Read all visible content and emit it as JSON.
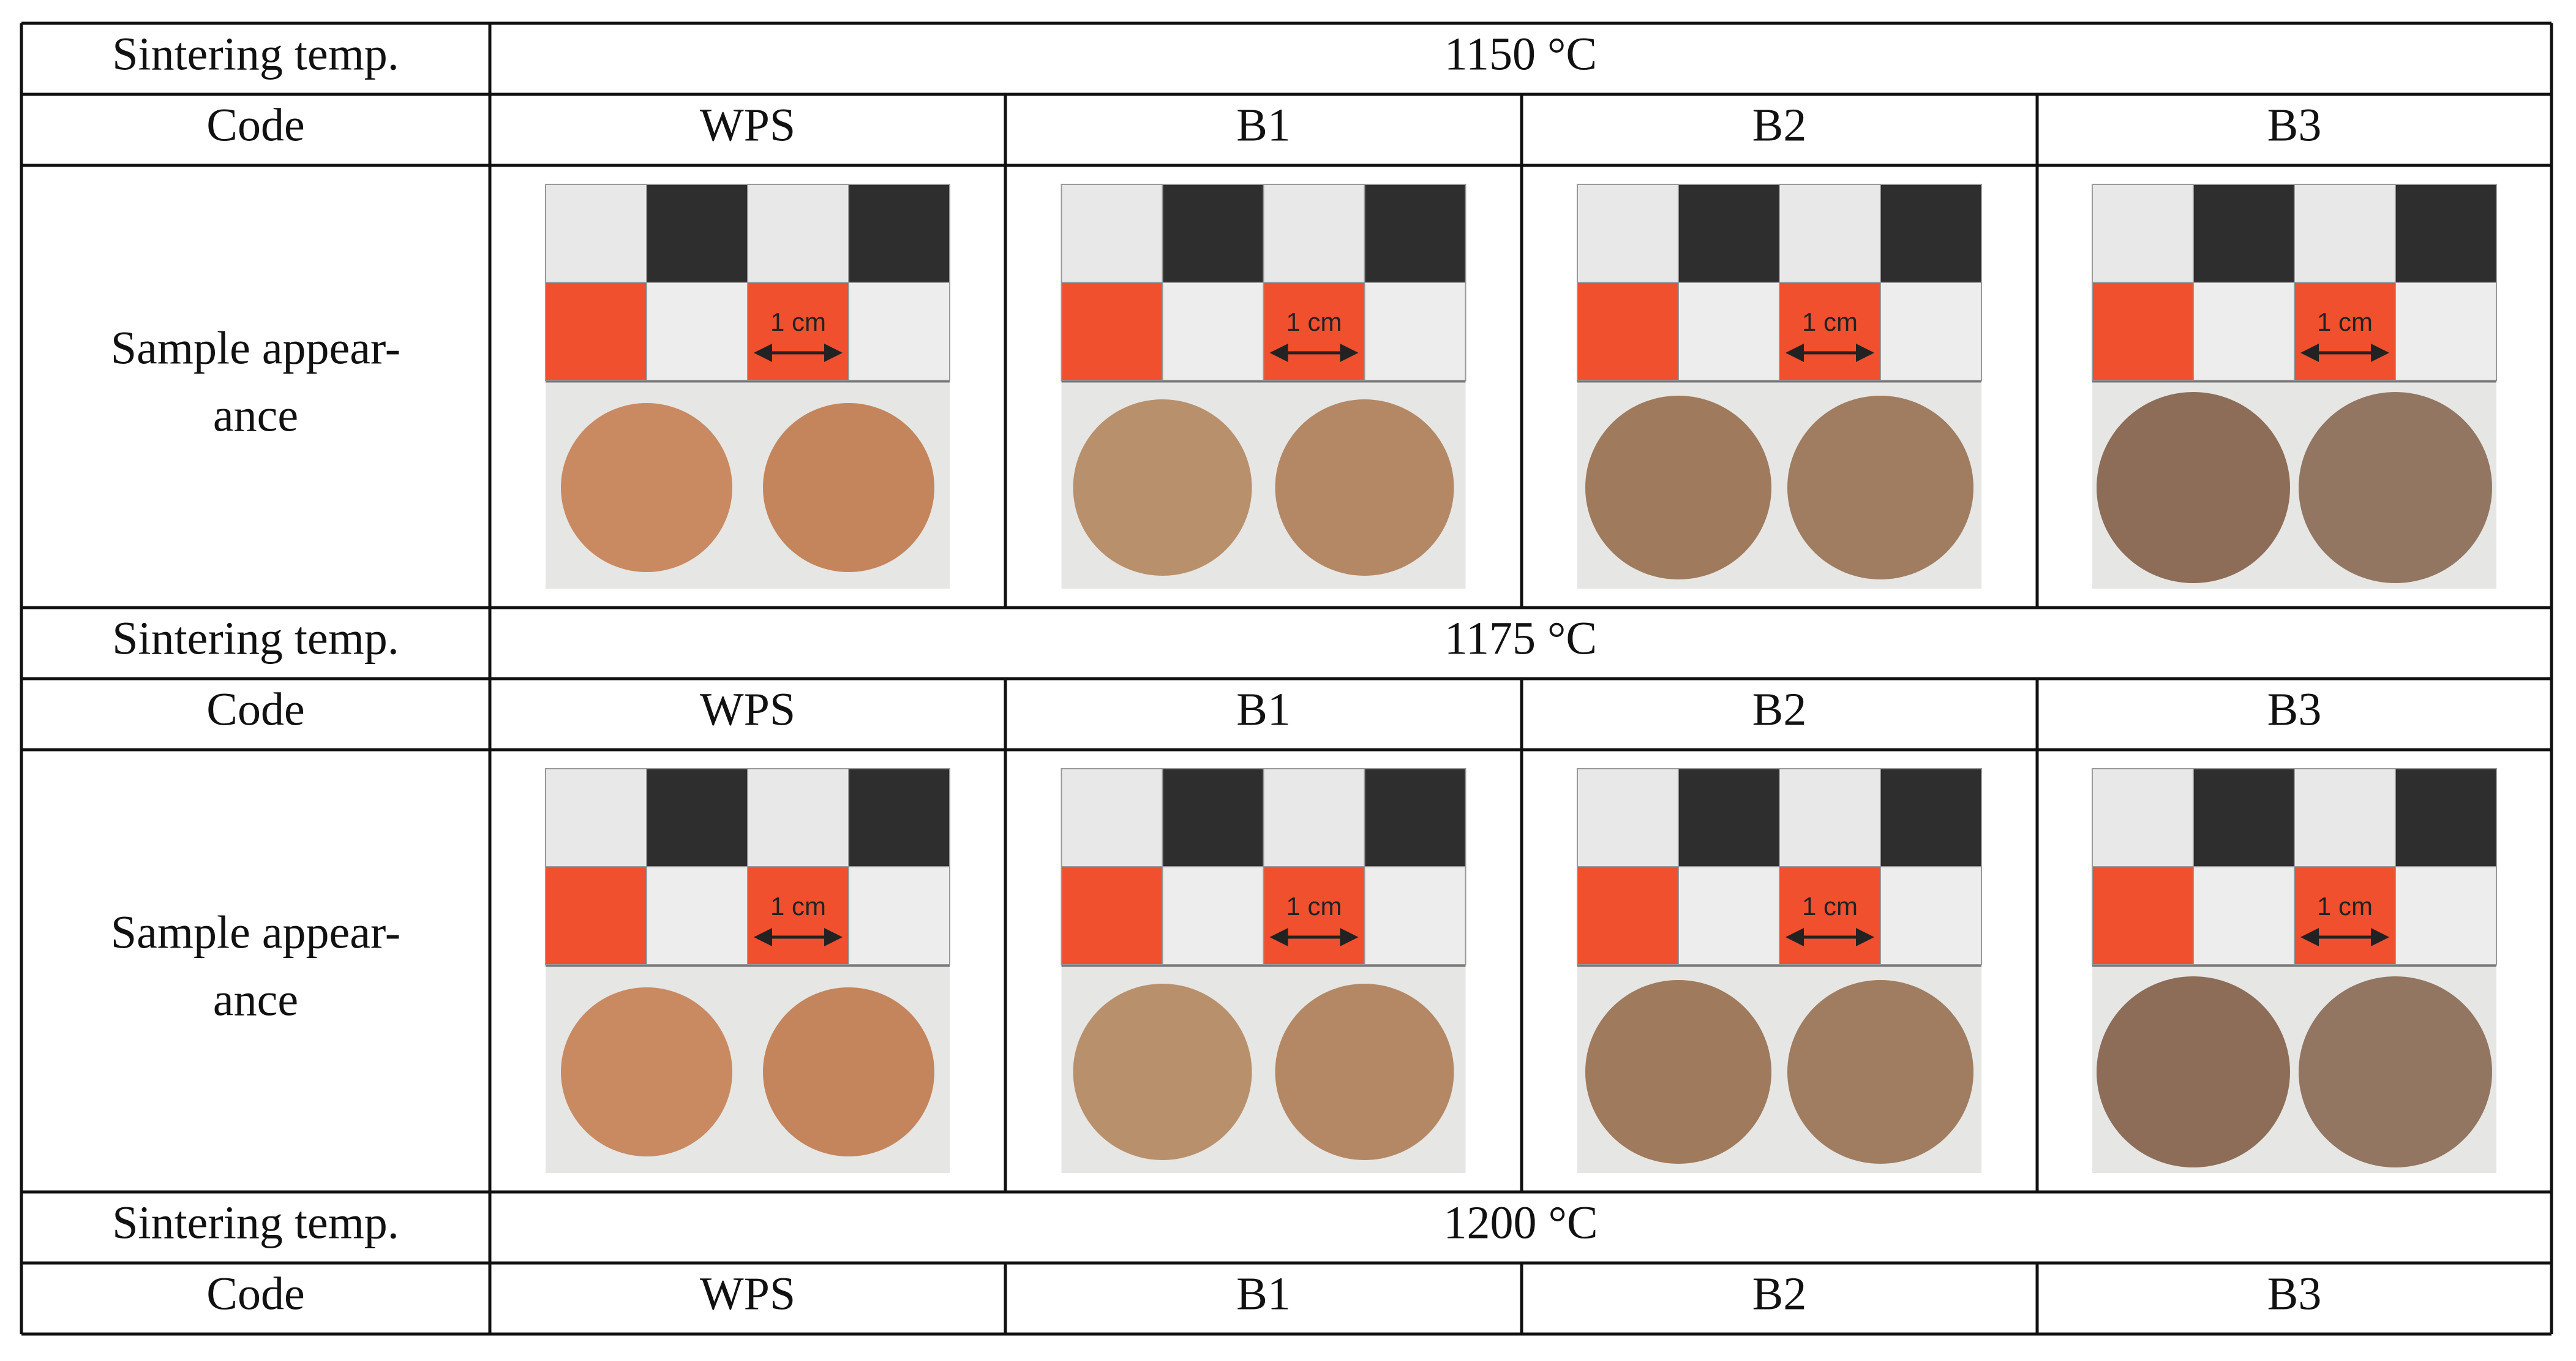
{
  "table": {
    "sections": [
      {
        "temp_label": "Sintering temp.",
        "temperature": "1150 °C",
        "code_label": "Code",
        "codes": [
          "WPS",
          "B1",
          "B2",
          "B3"
        ],
        "appearance_label": [
          "Sample appear-",
          "ance"
        ],
        "scale_label": "1 cm"
      },
      {
        "temp_label": "Sintering temp.",
        "temperature": "1175 °C",
        "code_label": "Code",
        "codes": [
          "WPS",
          "B1",
          "B2",
          "B3"
        ],
        "appearance_label": [
          "Sample appear-",
          "ance"
        ],
        "scale_label": "1 cm"
      },
      {
        "temp_label": "Sintering temp.",
        "temperature": "1200 °C",
        "code_label": "Code",
        "codes": [
          "WPS",
          "B1",
          "B2",
          "B3"
        ]
      }
    ]
  }
}
